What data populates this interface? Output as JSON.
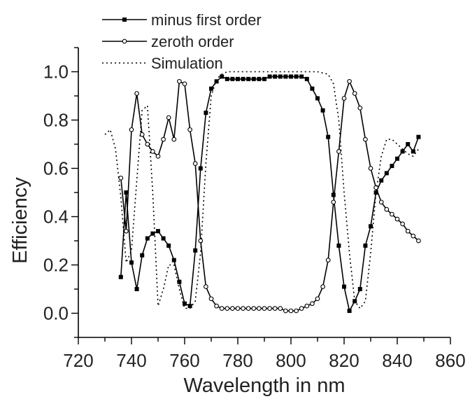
{
  "chart_data": {
    "type": "line",
    "title": "",
    "xlabel": "Wavelength in nm",
    "ylabel": "Efficiency",
    "xlim": [
      720,
      860
    ],
    "ylim": [
      -0.1,
      1.1
    ],
    "xticks": [
      720,
      740,
      760,
      780,
      800,
      820,
      840,
      860
    ],
    "xtick_labels": [
      "720",
      "740",
      "760",
      "780",
      "800",
      "820",
      "840",
      "860"
    ],
    "yticks": [
      0.0,
      0.2,
      0.4,
      0.6,
      0.8,
      1.0
    ],
    "ytick_labels": [
      "0.0",
      "0.2",
      "0.4",
      "0.6",
      "0.8",
      "1.0"
    ],
    "grid": false,
    "legend_position": "top-left",
    "series": [
      {
        "name": "minus first order",
        "marker": "filled-square",
        "style": "solid",
        "x": [
          736,
          738,
          740,
          742,
          744,
          746,
          748,
          750,
          752,
          754,
          756,
          758,
          760,
          762,
          764,
          766,
          768,
          770,
          772,
          774,
          776,
          778,
          780,
          782,
          784,
          786,
          788,
          790,
          792,
          794,
          796,
          798,
          800,
          802,
          804,
          806,
          808,
          810,
          812,
          814,
          816,
          818,
          820,
          822,
          824,
          826,
          828,
          830,
          832,
          834,
          836,
          838,
          840,
          842,
          844,
          846,
          848
        ],
        "y": [
          0.15,
          0.5,
          0.21,
          0.1,
          0.24,
          0.31,
          0.33,
          0.34,
          0.31,
          0.28,
          0.22,
          0.13,
          0.04,
          0.03,
          0.26,
          0.6,
          0.83,
          0.93,
          0.96,
          0.98,
          0.97,
          0.97,
          0.97,
          0.97,
          0.97,
          0.97,
          0.97,
          0.97,
          0.98,
          0.98,
          0.98,
          0.98,
          0.98,
          0.98,
          0.98,
          0.97,
          0.93,
          0.89,
          0.84,
          0.73,
          0.49,
          0.28,
          0.11,
          0.01,
          0.05,
          0.1,
          0.28,
          0.36,
          0.5,
          0.55,
          0.58,
          0.61,
          0.64,
          0.67,
          0.7,
          0.67,
          0.73
        ]
      },
      {
        "name": "zeroth order",
        "marker": "open-circle",
        "style": "solid",
        "x": [
          736,
          738,
          740,
          742,
          744,
          746,
          748,
          750,
          752,
          754,
          756,
          758,
          760,
          762,
          764,
          766,
          768,
          770,
          772,
          774,
          776,
          778,
          780,
          782,
          784,
          786,
          788,
          790,
          792,
          794,
          796,
          798,
          800,
          802,
          804,
          806,
          808,
          810,
          812,
          814,
          816,
          818,
          820,
          822,
          824,
          826,
          828,
          830,
          832,
          834,
          836,
          838,
          840,
          842,
          844,
          846,
          848
        ],
        "y": [
          0.56,
          0.34,
          0.76,
          0.91,
          0.74,
          0.7,
          0.67,
          0.65,
          0.72,
          0.81,
          0.72,
          0.96,
          0.95,
          0.76,
          0.62,
          0.3,
          0.11,
          0.06,
          0.03,
          0.02,
          0.02,
          0.02,
          0.02,
          0.02,
          0.02,
          0.02,
          0.02,
          0.02,
          0.02,
          0.02,
          0.02,
          0.01,
          0.01,
          0.01,
          0.02,
          0.03,
          0.04,
          0.06,
          0.11,
          0.22,
          0.46,
          0.67,
          0.89,
          0.96,
          0.91,
          0.85,
          0.72,
          0.6,
          0.52,
          0.46,
          0.43,
          0.41,
          0.39,
          0.37,
          0.34,
          0.32,
          0.3
        ]
      },
      {
        "name": "Simulation",
        "marker": "none",
        "style": "dotted",
        "x": [
          730,
          732,
          734,
          736,
          738,
          740,
          742,
          744,
          746,
          748,
          750,
          752,
          754,
          756,
          758,
          760,
          762,
          764,
          766,
          768,
          770,
          772,
          774,
          776,
          780,
          790,
          800,
          810,
          814,
          816,
          818,
          820,
          822,
          824,
          826,
          828,
          830,
          832,
          834,
          836,
          838,
          840,
          842,
          844,
          846,
          848
        ],
        "y": [
          0.74,
          0.76,
          0.68,
          0.48,
          0.21,
          0.26,
          0.55,
          0.84,
          0.86,
          0.5,
          0.03,
          0.1,
          0.2,
          0.2,
          0.1,
          0.02,
          0.02,
          0.05,
          0.25,
          0.62,
          0.9,
          0.97,
          0.99,
          1.0,
          1.0,
          1.0,
          1.0,
          1.0,
          0.99,
          0.95,
          0.8,
          0.5,
          0.25,
          0.05,
          0.02,
          0.05,
          0.25,
          0.5,
          0.65,
          0.72,
          0.72,
          0.7,
          0.68,
          0.66,
          0.65,
          0.68
        ]
      }
    ]
  }
}
